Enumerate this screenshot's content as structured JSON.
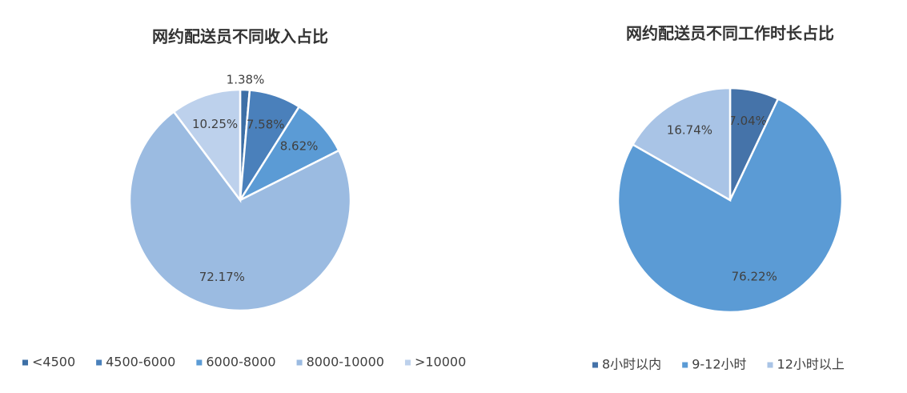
{
  "chart_data": [
    {
      "type": "pie",
      "title": "网约配送员不同收入占比",
      "categories": [
        "<4500",
        "4500-6000",
        "6000-8000",
        "8000-10000",
        ">10000"
      ],
      "values": [
        1.38,
        7.58,
        8.62,
        72.17,
        10.25
      ],
      "value_labels": [
        "1.38%",
        "7.58%",
        "8.62%",
        "72.17%",
        "10.25%"
      ],
      "colors": [
        "#3d6fa6",
        "#4a80bb",
        "#5b9bd5",
        "#9bbbe1",
        "#bdd1ec"
      ]
    },
    {
      "type": "pie",
      "title": "网约配送员不同工作时长占比",
      "categories": [
        "8小时以内",
        "9-12小时",
        "12小时以上"
      ],
      "values": [
        7.04,
        76.22,
        16.74
      ],
      "value_labels": [
        "7.04%",
        "76.22%",
        "16.74%"
      ],
      "colors": [
        "#4573a9",
        "#5b9bd5",
        "#a9c4e6"
      ]
    }
  ]
}
